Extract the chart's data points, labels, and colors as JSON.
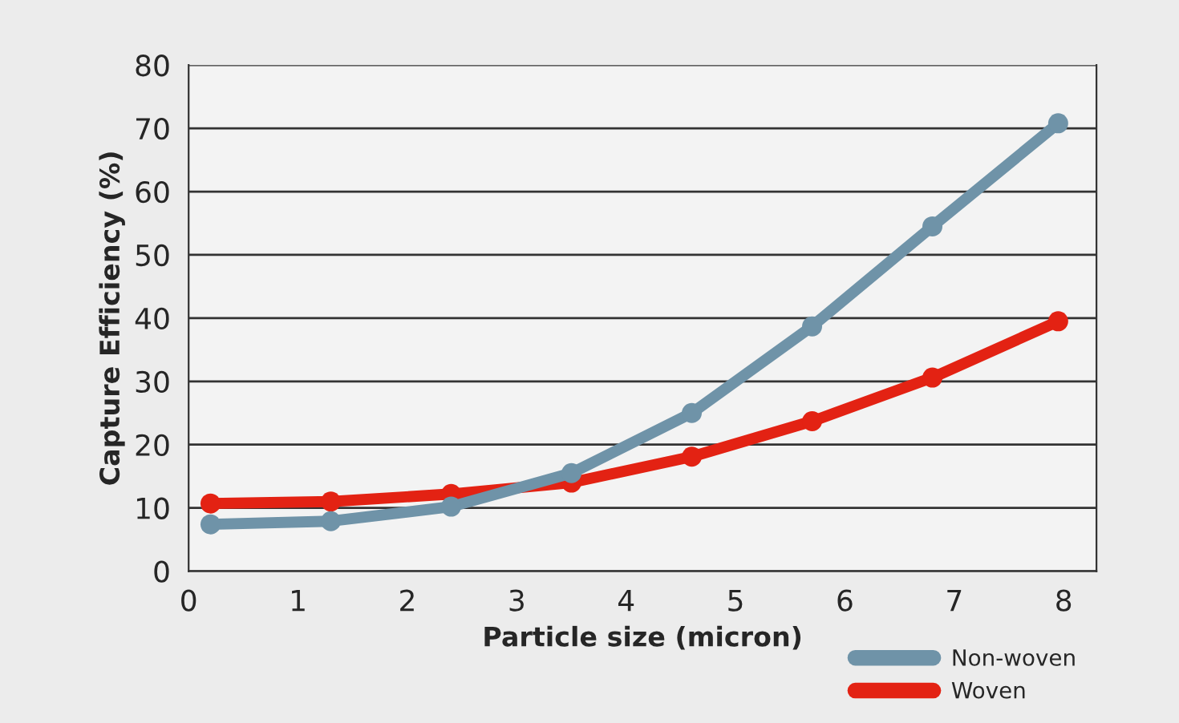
{
  "chart_data": {
    "type": "line",
    "xlabel": "Particle size (micron)",
    "ylabel": "Capture Efficiency (%)",
    "x": [
      0.2,
      1.3,
      2.4,
      3.5,
      4.6,
      5.7,
      6.8,
      7.95
    ],
    "series": [
      {
        "name": "Non-woven",
        "color": "#6f93a8",
        "values": [
          7.4,
          7.9,
          10.2,
          15.5,
          25,
          38.7,
          54.5,
          70.8
        ]
      },
      {
        "name": "Woven",
        "color": "#e32213",
        "values": [
          10.7,
          11.0,
          12.2,
          14.0,
          18.1,
          23.7,
          30.6,
          39.5
        ]
      }
    ],
    "xlim": [
      0,
      8.3
    ],
    "xticks": [
      0,
      1,
      2,
      3,
      4,
      5,
      6,
      7,
      8
    ],
    "ylim": [
      0,
      80
    ],
    "yticks": [
      0,
      10,
      20,
      30,
      40,
      50,
      60,
      70,
      80
    ],
    "grid": "y",
    "legend": "bottom right",
    "marker": "circle",
    "line_style": "solid"
  }
}
